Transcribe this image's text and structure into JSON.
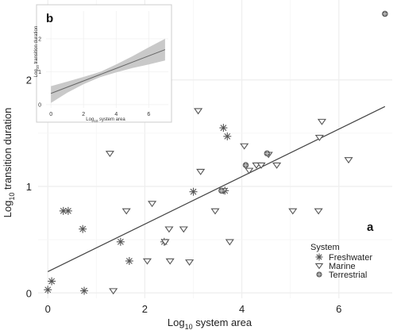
{
  "chart_data": [
    {
      "panel": "a",
      "type": "scatter",
      "xlabel_main": "Log",
      "xlabel_sub": "10",
      "xlabel_rest": " system area",
      "ylabel_main": "Log",
      "ylabel_sub": "10",
      "ylabel_rest": " transition duration",
      "xlim": [
        -0.2,
        7.1
      ],
      "ylim": [
        -0.05,
        2.75
      ],
      "x_ticks": [
        0,
        2,
        4,
        6
      ],
      "y_ticks": [
        0,
        1,
        2
      ],
      "grid": true,
      "legend_title": "System",
      "legend_position": "bottom-right",
      "series": [
        {
          "name": "Freshwater",
          "marker": "asterisk",
          "points": [
            [
              0.0,
              0.03
            ],
            [
              0.08,
              0.11
            ],
            [
              0.32,
              0.77
            ],
            [
              0.42,
              0.77
            ],
            [
              0.72,
              0.6
            ],
            [
              0.75,
              0.02
            ],
            [
              1.5,
              0.48
            ],
            [
              1.68,
              0.3
            ],
            [
              2.4,
              0.48
            ],
            [
              3.0,
              0.95
            ],
            [
              3.62,
              1.55
            ],
            [
              3.7,
              1.47
            ],
            [
              3.65,
              0.96
            ]
          ]
        },
        {
          "name": "Marine",
          "marker": "triangle-down",
          "points": [
            [
              1.28,
              1.31
            ],
            [
              1.35,
              0.02
            ],
            [
              1.62,
              0.77
            ],
            [
              2.05,
              0.3
            ],
            [
              2.15,
              0.84
            ],
            [
              2.42,
              0.48
            ],
            [
              2.5,
              0.6
            ],
            [
              2.52,
              0.3
            ],
            [
              2.8,
              0.6
            ],
            [
              2.92,
              0.29
            ],
            [
              3.1,
              1.71
            ],
            [
              3.15,
              1.14
            ],
            [
              3.45,
              0.77
            ],
            [
              3.62,
              0.96
            ],
            [
              3.75,
              0.48
            ],
            [
              4.05,
              1.38
            ],
            [
              4.15,
              1.15
            ],
            [
              4.3,
              1.2
            ],
            [
              4.4,
              1.2
            ],
            [
              4.55,
              1.3
            ],
            [
              4.72,
              1.2
            ],
            [
              5.05,
              0.77
            ],
            [
              5.58,
              0.77
            ],
            [
              5.6,
              1.46
            ],
            [
              5.65,
              1.61
            ],
            [
              6.2,
              1.25
            ]
          ]
        },
        {
          "name": "Terrestrial",
          "marker": "diamond",
          "points": [
            [
              3.58,
              0.96
            ],
            [
              4.08,
              1.2
            ],
            [
              4.52,
              1.31
            ],
            [
              6.95,
              2.62
            ]
          ]
        }
      ],
      "fit_line": {
        "x": [
          0,
          6.95
        ],
        "y": [
          0.2,
          1.75
        ]
      }
    },
    {
      "panel": "b",
      "type": "line",
      "xlabel_main": "Log",
      "xlabel_sub": "10",
      "xlabel_rest": " system area",
      "ylabel_main": "Log",
      "ylabel_sub": "10",
      "ylabel_rest": " transition duration",
      "xlim": [
        -0.3,
        7.2
      ],
      "ylim": [
        -0.1,
        2.6
      ],
      "x_ticks": [
        0,
        2,
        4,
        6
      ],
      "y_ticks": [
        0,
        1,
        2
      ],
      "fit": {
        "x": [
          0,
          1,
          2,
          3,
          4,
          5,
          6,
          7
        ],
        "y": [
          0.34,
          0.53,
          0.72,
          0.91,
          1.1,
          1.29,
          1.48,
          1.67
        ],
        "lower": [
          0.05,
          0.36,
          0.62,
          0.83,
          0.98,
          1.11,
          1.22,
          1.34
        ],
        "upper": [
          0.56,
          0.7,
          0.84,
          0.99,
          1.22,
          1.47,
          1.74,
          2.0
        ]
      }
    }
  ],
  "colors": {
    "point": "#555555",
    "terrestrial": "#777777",
    "fit_line": "#444444",
    "band": "#c9c9c9",
    "grid": "#eeeeee"
  }
}
